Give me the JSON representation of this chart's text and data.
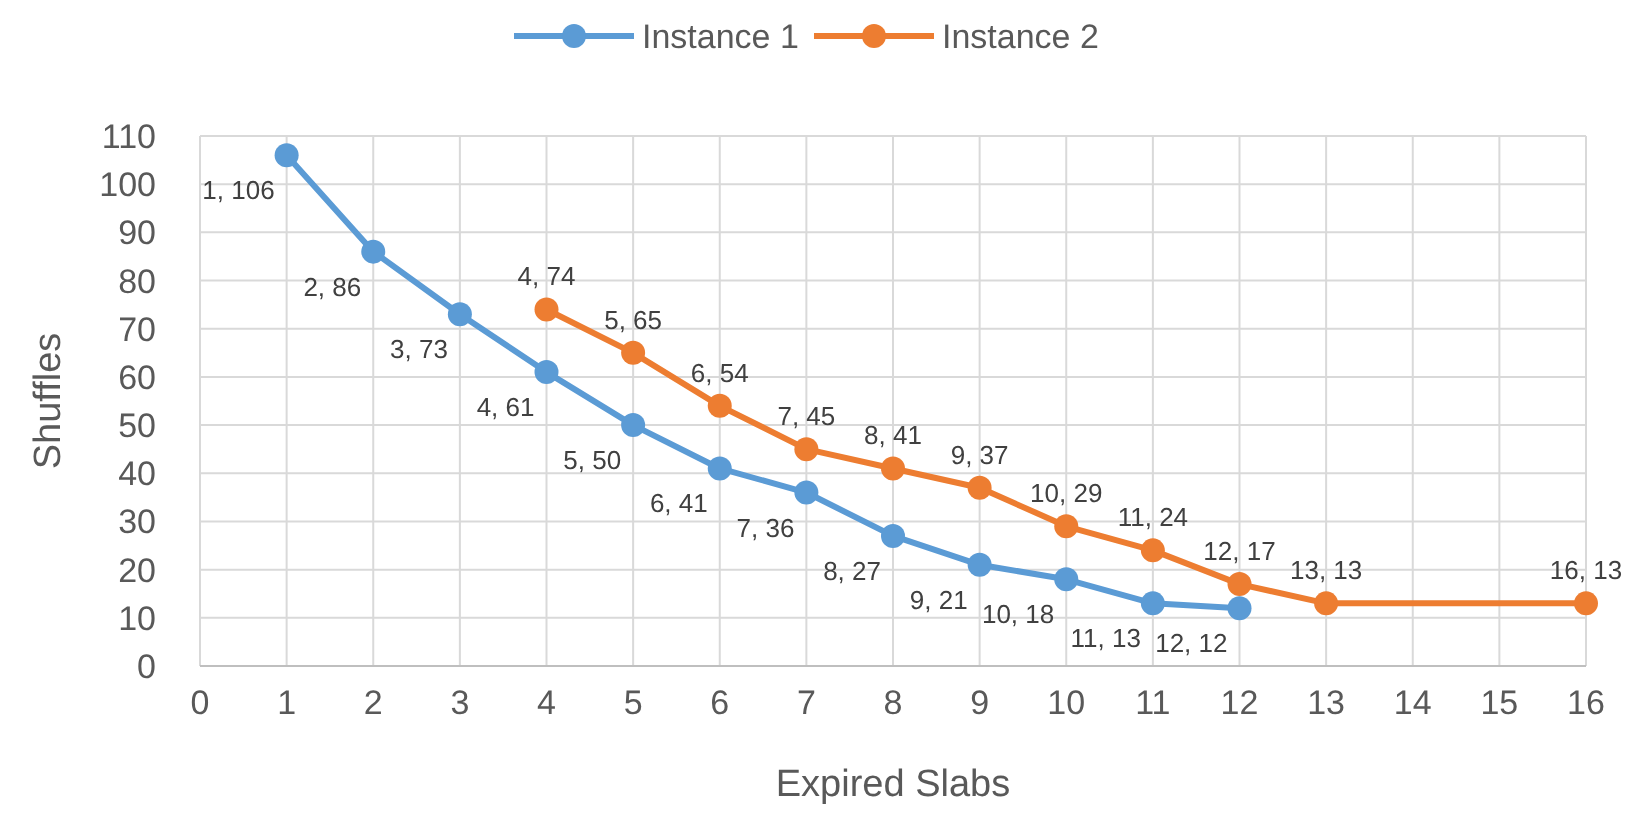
{
  "chart_data": {
    "type": "line",
    "xlabel": "Expired Slabs",
    "ylabel": "Shuffles",
    "xlim": [
      0,
      16
    ],
    "xticks": [
      0,
      1,
      2,
      3,
      4,
      5,
      6,
      7,
      8,
      9,
      10,
      11,
      12,
      13,
      14,
      15,
      16
    ],
    "ylim": [
      0,
      110
    ],
    "yticks": [
      0,
      10,
      20,
      30,
      40,
      50,
      60,
      70,
      80,
      90,
      100,
      110
    ],
    "grid": true,
    "legend": "top",
    "marker": "circle",
    "line_style": "solid",
    "series": [
      {
        "name": "Instance 1",
        "color": "#5b9bd5",
        "x": [
          1,
          2,
          3,
          4,
          5,
          6,
          7,
          8,
          9,
          10,
          11,
          12
        ],
        "values": [
          106,
          86,
          73,
          61,
          50,
          41,
          36,
          27,
          21,
          18,
          13,
          12
        ],
        "value_labels": [
          "1, 106",
          "2, 86",
          "3, 73",
          "4, 61",
          "5, 50",
          "6, 41",
          "7, 36",
          "8, 27",
          "9, 21",
          "10, 18",
          "11, 13",
          "12, 12"
        ]
      },
      {
        "name": "Instance 2",
        "color": "#ed7d31",
        "x": [
          4,
          5,
          6,
          7,
          8,
          9,
          10,
          11,
          12,
          13,
          16
        ],
        "values": [
          74,
          65,
          54,
          45,
          41,
          37,
          29,
          24,
          17,
          13,
          13
        ],
        "value_labels": [
          "4, 74",
          "5, 65",
          "6, 54",
          "7, 45",
          "8, 41",
          "9, 37",
          "10, 29",
          "11, 24",
          "12, 17",
          "13, 13",
          "16, 13"
        ]
      }
    ]
  }
}
